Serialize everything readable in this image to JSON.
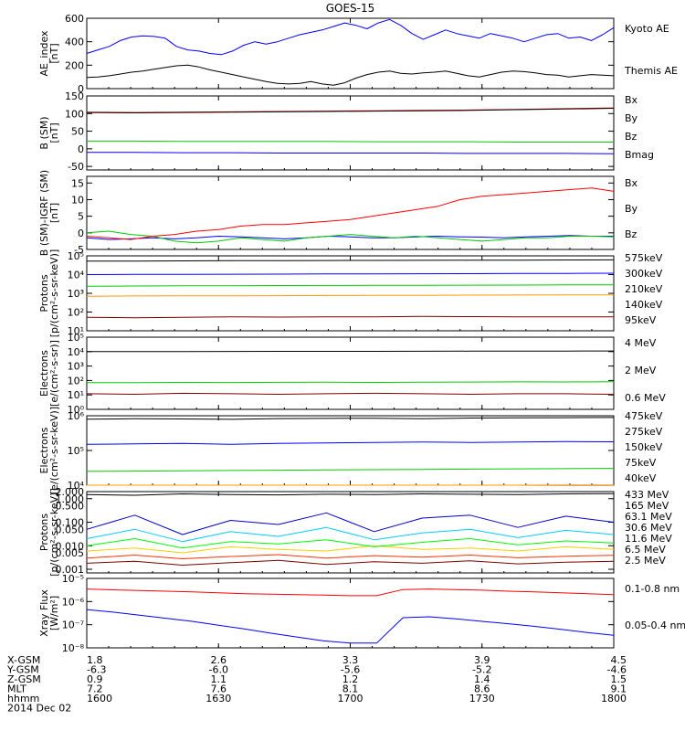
{
  "chart_data": {
    "type": "line",
    "title": "GOES-15",
    "x_axis": {
      "range": [
        1600,
        1800
      ],
      "hhmm_ticks": [
        "1600",
        "1630",
        "1700",
        "1730",
        "1800"
      ],
      "date": "2014 Dec 02",
      "ephemeris": [
        {
          "name": "X-GSM",
          "values": [
            "1.8",
            "2.6",
            "3.3",
            "3.9",
            "4.5"
          ]
        },
        {
          "name": "Y-GSM",
          "values": [
            "-6.3",
            "-6.0",
            "-5.6",
            "-5.2",
            "-4.6"
          ]
        },
        {
          "name": "Z-GSM",
          "values": [
            "0.9",
            "1.1",
            "1.2",
            "1.4",
            "1.5"
          ]
        },
        {
          "name": "MLT",
          "values": [
            "7.2",
            "7.6",
            "8.1",
            "8.6",
            "9.1"
          ]
        },
        {
          "name": "hhmm",
          "values": [
            "1600",
            "1630",
            "1700",
            "1730",
            "1800"
          ]
        }
      ]
    },
    "panels": [
      {
        "ylabel": [
          "AE_index",
          "[nT]"
        ],
        "ylog": false,
        "ylim": [
          0,
          600
        ],
        "yticks": [
          0,
          200,
          400,
          600
        ],
        "yticklabels": [
          "0",
          "200",
          "400",
          "600"
        ],
        "series": [
          {
            "name": "Kyoto AE",
            "color": "#0000ff",
            "values": [
              300,
              330,
              360,
              410,
              440,
              450,
              445,
              430,
              360,
              330,
              320,
              300,
              290,
              320,
              370,
              400,
              380,
              400,
              430,
              460,
              480,
              500,
              530,
              560,
              540,
              510,
              560,
              590,
              540,
              470,
              420,
              460,
              500,
              470,
              450,
              430,
              470,
              450,
              430,
              400,
              430,
              460,
              470,
              430,
              440,
              410,
              460,
              520
            ]
          },
          {
            "name": "Themis AE",
            "color": "#000000",
            "values": [
              95,
              100,
              110,
              125,
              140,
              150,
              165,
              180,
              195,
              200,
              185,
              160,
              140,
              120,
              100,
              80,
              60,
              45,
              40,
              45,
              60,
              40,
              30,
              50,
              90,
              120,
              140,
              150,
              130,
              125,
              135,
              140,
              150,
              130,
              110,
              100,
              120,
              140,
              150,
              145,
              135,
              120,
              115,
              100,
              110,
              120,
              115,
              110
            ]
          }
        ]
      },
      {
        "ylabel": [
          "B (SM)",
          "[nT]"
        ],
        "ylog": false,
        "ylim": [
          -60,
          150
        ],
        "yticks": [
          -50,
          0,
          50,
          100,
          150
        ],
        "yticklabels": [
          "-50",
          "0",
          "50",
          "100",
          "150"
        ],
        "series": [
          {
            "name": "Bx",
            "color": "#0000ff",
            "values": [
              -10,
              -10,
              -11,
              -11,
              -12,
              -12,
              -12,
              -12,
              -13,
              -13,
              -13,
              -14
            ]
          },
          {
            "name": "By",
            "color": "#00cc00",
            "values": [
              22,
              22,
              21,
              21,
              21,
              21,
              20,
              20,
              20,
              19,
              19,
              19
            ]
          },
          {
            "name": "Bz",
            "color": "#ff0000",
            "values": [
              104,
              103,
              104,
              105,
              106,
              107,
              108,
              109,
              110,
              112,
              114,
              116
            ]
          },
          {
            "name": "Bmag",
            "color": "#000000",
            "values": [
              103,
              102,
              103,
              104,
              105,
              106,
              107,
              108,
              109,
              111,
              113,
              115
            ]
          }
        ]
      },
      {
        "ylabel": [
          "B (SM)-IGRF (SM)",
          "[nT]"
        ],
        "ylog": false,
        "ylim": [
          -5,
          17
        ],
        "yticks": [
          -5,
          0,
          5,
          10,
          15
        ],
        "yticklabels": [
          "-5",
          "0",
          "5",
          "10",
          "15"
        ],
        "series": [
          {
            "name": "Bx",
            "color": "#0000ff",
            "values": [
              -1.5,
              -2.0,
              -1.8,
              -1.5,
              -1.8,
              -1.5,
              -1.0,
              -1.2,
              -1.5,
              -1.8,
              -1.5,
              -1.0,
              -1.2,
              -1.5,
              -1.5,
              -1.2,
              -1.0,
              -1.2,
              -1.3,
              -1.5,
              -1.2,
              -1.0,
              -0.8,
              -1.0,
              -1.0
            ]
          },
          {
            "name": "By",
            "color": "#00cc00",
            "values": [
              0,
              0.5,
              -0.5,
              -1.0,
              -2.5,
              -3.0,
              -2.5,
              -1.5,
              -2.0,
              -2.5,
              -1.5,
              -1.0,
              -0.5,
              -1.0,
              -1.5,
              -1.0,
              -1.5,
              -2.0,
              -2.5,
              -2.0,
              -1.5,
              -1.5,
              -1.0,
              -1.0,
              -1.2
            ]
          },
          {
            "name": "Bz",
            "color": "#ff0000",
            "values": [
              -1.0,
              -1.5,
              -2.0,
              -1.0,
              -0.5,
              0.5,
              1.0,
              2.0,
              2.5,
              2.5,
              3.0,
              3.5,
              4.0,
              5.0,
              6.0,
              7.0,
              8.0,
              10.0,
              11.0,
              11.5,
              12.0,
              12.5,
              13.0,
              13.5,
              12.5
            ]
          }
        ]
      },
      {
        "ylabel": [
          "Protons",
          "[p/(cm²-s-sr-keV)]"
        ],
        "ylog": true,
        "ylim": [
          10,
          100000
        ],
        "yticks": [
          10,
          100,
          1000,
          10000,
          100000
        ],
        "yticklabels": [
          "10¹",
          "10²",
          "10³",
          "10⁴",
          "10⁵"
        ],
        "series": [
          {
            "name": "575keV",
            "color": "#800000",
            "values": [
              52,
              50,
              53,
              55,
              54,
              56,
              55,
              58,
              57,
              56,
              55,
              55
            ]
          },
          {
            "name": "300keV",
            "color": "#ff9900",
            "values": [
              700,
              720,
              730,
              740,
              750,
              760,
              770,
              780,
              800,
              810,
              820,
              830
            ]
          },
          {
            "name": "210keV",
            "color": "#00cc00",
            "values": [
              2400,
              2450,
              2500,
              2550,
              2600,
              2620,
              2650,
              2700,
              2720,
              2750,
              2800,
              2850
            ]
          },
          {
            "name": "140keV",
            "color": "#0000ff",
            "values": [
              10000,
              10200,
              10300,
              10500,
              10600,
              10800,
              11000,
              11100,
              11200,
              11400,
              11600,
              11800
            ]
          },
          {
            "name": "95keV",
            "color": "#000000",
            "values": [
              52000,
              53000,
              54000,
              55000,
              56000,
              56500,
              57000,
              57500,
              58000,
              59000,
              60000,
              61000
            ]
          }
        ]
      },
      {
        "ylabel": [
          "Electrons",
          "[e/(cm²-s-sr)]"
        ],
        "ylog": true,
        "ylim": [
          1,
          100000
        ],
        "yticks": [
          1,
          10,
          100,
          1000,
          10000,
          100000
        ],
        "yticklabels": [
          "10⁰",
          "10¹",
          "10²",
          "10³",
          "10⁴",
          "10⁵"
        ],
        "series": [
          {
            "name": "4 MeV",
            "color": "#800000",
            "values": [
              12,
              11,
              13,
              12,
              11,
              12,
              13,
              12,
              11,
              12,
              12,
              11
            ]
          },
          {
            "name": "2 MeV",
            "color": "#00cc00",
            "values": [
              70,
              72,
              74,
              73,
              75,
              76,
              74,
              77,
              78,
              80,
              79,
              82
            ]
          },
          {
            "name": "0.6 MeV",
            "color": "#000000",
            "values": [
              10000,
              10100,
              10200,
              10300,
              10400,
              10500,
              10400,
              10600,
              10700,
              10800,
              10900,
              11000
            ]
          }
        ]
      },
      {
        "ylabel": [
          "Electrons",
          "[e/(cm²-s-sr-keV)]"
        ],
        "ylog": true,
        "ylim": [
          10000,
          1000000
        ],
        "yticks": [
          10000,
          100000,
          1000000
        ],
        "yticklabels": [
          "10⁴",
          "10⁵",
          "10⁶"
        ],
        "series": [
          {
            "name": "475keV",
            "color": "#800000",
            "values": [
              5000,
              5100,
              5200,
              5200,
              5300,
              5300,
              5400,
              5500,
              5500,
              5600,
              5700,
              5800
            ]
          },
          {
            "name": "275keV",
            "color": "#ff9900",
            "values": [
              9000,
              9200,
              9300,
              9400,
              9500,
              9600,
              9700,
              9800,
              9900,
              10000,
              10100,
              10200
            ]
          },
          {
            "name": "150keV",
            "color": "#00cc00",
            "values": [
              25000,
              25500,
              26000,
              26500,
              27000,
              27500,
              28000,
              28500,
              29000,
              29500,
              30000,
              30500
            ]
          },
          {
            "name": "75keV",
            "color": "#0000ff",
            "values": [
              150000,
              155000,
              160000,
              150000,
              160000,
              165000,
              170000,
              175000,
              170000,
              175000,
              180000,
              178000
            ]
          },
          {
            "name": "40keV",
            "color": "#000000",
            "values": [
              800000,
              820000,
              810000,
              790000,
              830000,
              840000,
              850000,
              820000,
              860000,
              870000,
              880000,
              890000
            ]
          }
        ]
      },
      {
        "ylabel": [
          "Protons",
          "[p/(cm²-s-sr-keV)]"
        ],
        "ylog": true,
        "ylim": [
          0.0007,
          2
        ],
        "yticks": [
          0.001,
          0.01,
          0.1,
          1
        ],
        "yticklabels": [
          "0.001",
          "0.010",
          "0.100",
          "1.000"
        ],
        "extra_ticks": [
          {
            "value": 0.005,
            "label": "0.005"
          },
          {
            "value": 0.05,
            "label": "0.050"
          },
          {
            "value": 0.5,
            "label": "0.500"
          },
          {
            "value": 2,
            "label": "2.000"
          }
        ],
        "series": [
          {
            "name": "433 MeV",
            "color": "#800000",
            "values": [
              0.0018,
              0.0022,
              0.0015,
              0.0019,
              0.0024,
              0.0016,
              0.0021,
              0.0018,
              0.0023,
              0.0017,
              0.002,
              0.0022
            ]
          },
          {
            "name": "165 MeV",
            "color": "#ff3300",
            "values": [
              0.003,
              0.004,
              0.0028,
              0.0035,
              0.0042,
              0.003,
              0.0038,
              0.0033,
              0.004,
              0.0031,
              0.0036,
              0.0039
            ]
          },
          {
            "name": "63.1 MeV",
            "color": "#ffcc00",
            "values": [
              0.006,
              0.008,
              0.005,
              0.009,
              0.007,
              0.006,
              0.01,
              0.007,
              0.008,
              0.006,
              0.009,
              0.007
            ]
          },
          {
            "name": "30.6 MeV",
            "color": "#00ff00",
            "values": [
              0.01,
              0.02,
              0.008,
              0.015,
              0.012,
              0.018,
              0.009,
              0.014,
              0.02,
              0.011,
              0.016,
              0.013
            ]
          },
          {
            "name": "11.6 MeV",
            "color": "#00ccff",
            "values": [
              0.02,
              0.05,
              0.015,
              0.04,
              0.025,
              0.06,
              0.018,
              0.035,
              0.05,
              0.022,
              0.045,
              0.03
            ]
          },
          {
            "name": "6.5 MeV",
            "color": "#0000cc",
            "values": [
              0.05,
              0.2,
              0.03,
              0.12,
              0.08,
              0.25,
              0.04,
              0.15,
              0.2,
              0.06,
              0.18,
              0.1
            ]
          },
          {
            "name": "2.5 MeV",
            "color": "#000000",
            "values": [
              1.5,
              1.4,
              1.6,
              1.5,
              1.45,
              1.55,
              1.5,
              1.6,
              1.55,
              1.5,
              1.6,
              1.65
            ]
          }
        ]
      },
      {
        "ylabel": [
          "Xray Flux",
          "[W/m²]"
        ],
        "ylog": true,
        "ylim": [
          1e-08,
          1e-05
        ],
        "yticks": [
          1e-08,
          1e-07,
          1e-06,
          1e-05
        ],
        "yticklabels": [
          "10⁻⁸",
          "10⁻⁷",
          "10⁻⁶",
          "10⁻⁵"
        ],
        "series": [
          {
            "name": "0.1-0.8 nm",
            "color": "#ff0000",
            "values": [
              3.5e-06,
              3.2e-06,
              3e-06,
              2.8e-06,
              2.6e-06,
              2.4e-06,
              2.2e-06,
              2.1e-06,
              2e-06,
              1.9e-06,
              1.8e-06,
              1.8e-06,
              3.3e-06,
              3.5e-06,
              3.3e-06,
              3.1e-06,
              2.8e-06,
              2.6e-06,
              2.4e-06,
              2.2e-06,
              2e-06
            ]
          },
          {
            "name": "0.05-0.4 nm",
            "color": "#0000ff",
            "values": [
              4.5e-07,
              3.5e-07,
              2.6e-07,
              1.9e-07,
              1.4e-07,
              9.5e-08,
              6.5e-08,
              4.3e-08,
              2.9e-08,
              2e-08,
              1.6e-08,
              1.6e-08,
              2e-07,
              2.2e-07,
              1.8e-07,
              1.4e-07,
              1.1e-07,
              8.5e-08,
              6.3e-08,
              4.6e-08,
              3.5e-08
            ]
          }
        ]
      }
    ]
  }
}
